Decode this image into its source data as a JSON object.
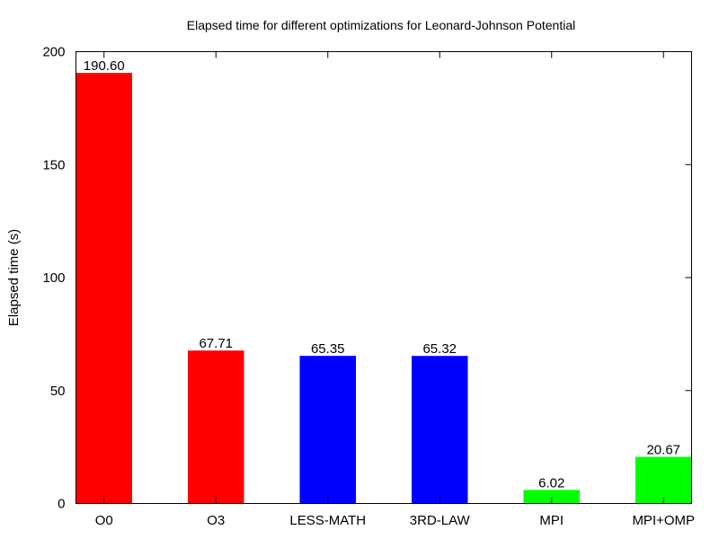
{
  "chart_data": {
    "type": "bar",
    "title": "Elapsed time for different optimizations for Leonard-Johnson Potential",
    "xlabel": "",
    "ylabel": "Elapsed time (s)",
    "ylim": [
      0,
      200
    ],
    "yticks": [
      0,
      50,
      100,
      150,
      200
    ],
    "categories": [
      "O0",
      "O3",
      "LESS-MATH",
      "3RD-LAW",
      "MPI",
      "MPI+OMP"
    ],
    "values": [
      190.6,
      67.71,
      65.35,
      65.32,
      6.02,
      20.67
    ],
    "value_labels": [
      "190.60",
      "67.71",
      "65.35",
      "65.32",
      "6.02",
      "20.67"
    ],
    "bar_colors": [
      "#ff0000",
      "#ff0000",
      "#0000ff",
      "#0000ff",
      "#00ff00",
      "#00ff00"
    ],
    "grid": false,
    "legend": "none"
  }
}
